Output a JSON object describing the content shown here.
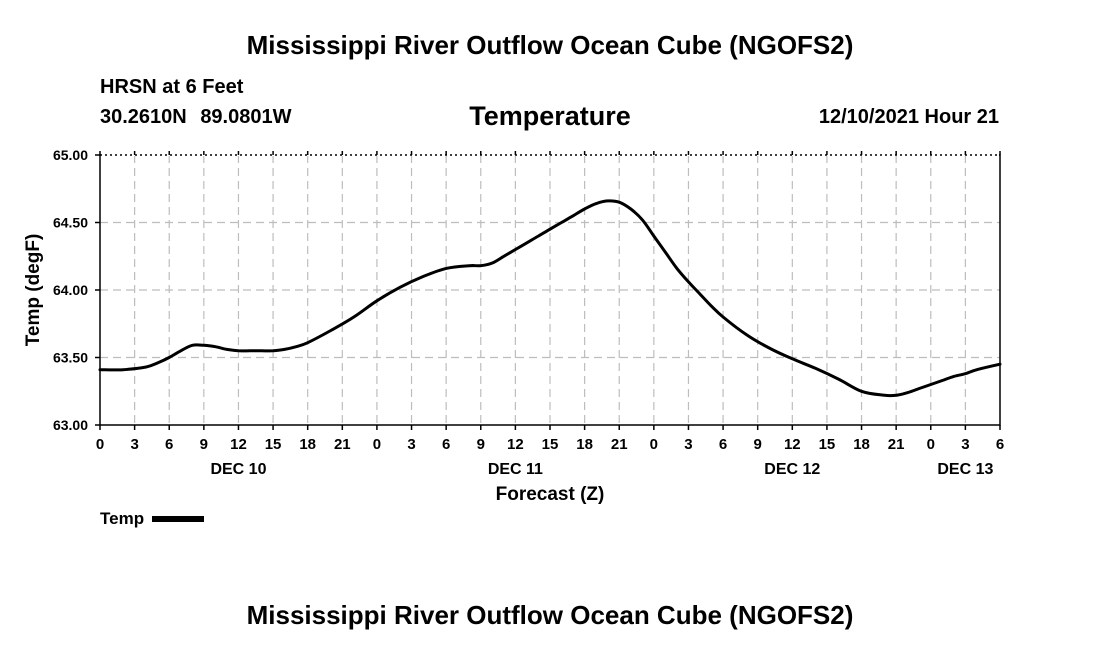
{
  "header": {
    "title": "Mississippi River Outflow Ocean Cube (NGOFS2)",
    "station": "HRSN at 6 Feet",
    "lat": "30.2610N",
    "lon": "89.0801W",
    "variable": "Temperature",
    "datetime": "12/10/2021 Hour 21"
  },
  "footer": {
    "title": "Mississippi River Outflow Ocean Cube (NGOFS2)"
  },
  "legend": {
    "label": "Temp"
  },
  "chart_data": {
    "type": "line",
    "title": "Temperature",
    "xlabel": "Forecast (Z)",
    "ylabel": "Temp (degF)",
    "xlim": [
      0,
      78
    ],
    "ylim": [
      63.0,
      65.0
    ],
    "yticks": [
      "63.00",
      "63.50",
      "64.00",
      "64.50",
      "65.00"
    ],
    "ytick_values": [
      63.0,
      63.5,
      64.0,
      64.5,
      65.0
    ],
    "xtick_labels": [
      "0",
      "3",
      "6",
      "9",
      "12",
      "15",
      "18",
      "21",
      "0",
      "3",
      "6",
      "9",
      "12",
      "15",
      "18",
      "21",
      "0",
      "3",
      "6",
      "9",
      "12",
      "15",
      "18",
      "21",
      "0",
      "3",
      "6"
    ],
    "date_labels": [
      {
        "text": "DEC 10",
        "hour": 12
      },
      {
        "text": "DEC 11",
        "hour": 36
      },
      {
        "text": "DEC 12",
        "hour": 60
      },
      {
        "text": "DEC 13",
        "hour": 75
      }
    ],
    "grid": true,
    "series": [
      {
        "name": "Temp",
        "x": [
          0,
          2,
          4,
          5,
          6,
          7,
          8,
          9,
          10,
          11,
          12,
          13,
          14,
          15,
          16,
          17,
          18,
          20,
          22,
          24,
          26,
          28,
          30,
          32,
          33,
          34,
          35,
          36,
          37,
          38,
          39,
          40,
          41,
          42,
          43,
          44,
          45,
          46,
          47,
          48,
          49,
          50,
          51,
          52,
          53,
          54,
          56,
          58,
          60,
          62,
          64,
          66,
          68,
          69,
          70,
          71,
          72,
          73,
          74,
          75,
          76,
          78
        ],
        "values": [
          63.41,
          63.41,
          63.43,
          63.46,
          63.5,
          63.55,
          63.59,
          63.59,
          63.58,
          63.56,
          63.55,
          63.55,
          63.55,
          63.55,
          63.56,
          63.58,
          63.61,
          63.7,
          63.8,
          63.92,
          64.02,
          64.1,
          64.16,
          64.18,
          64.18,
          64.2,
          64.25,
          64.3,
          64.35,
          64.4,
          64.45,
          64.5,
          64.55,
          64.6,
          64.64,
          64.66,
          64.65,
          64.6,
          64.52,
          64.4,
          64.28,
          64.16,
          64.06,
          63.97,
          63.88,
          63.8,
          63.67,
          63.57,
          63.49,
          63.42,
          63.34,
          63.25,
          63.22,
          63.22,
          63.24,
          63.27,
          63.3,
          63.33,
          63.36,
          63.38,
          63.41,
          63.45
        ]
      }
    ]
  }
}
